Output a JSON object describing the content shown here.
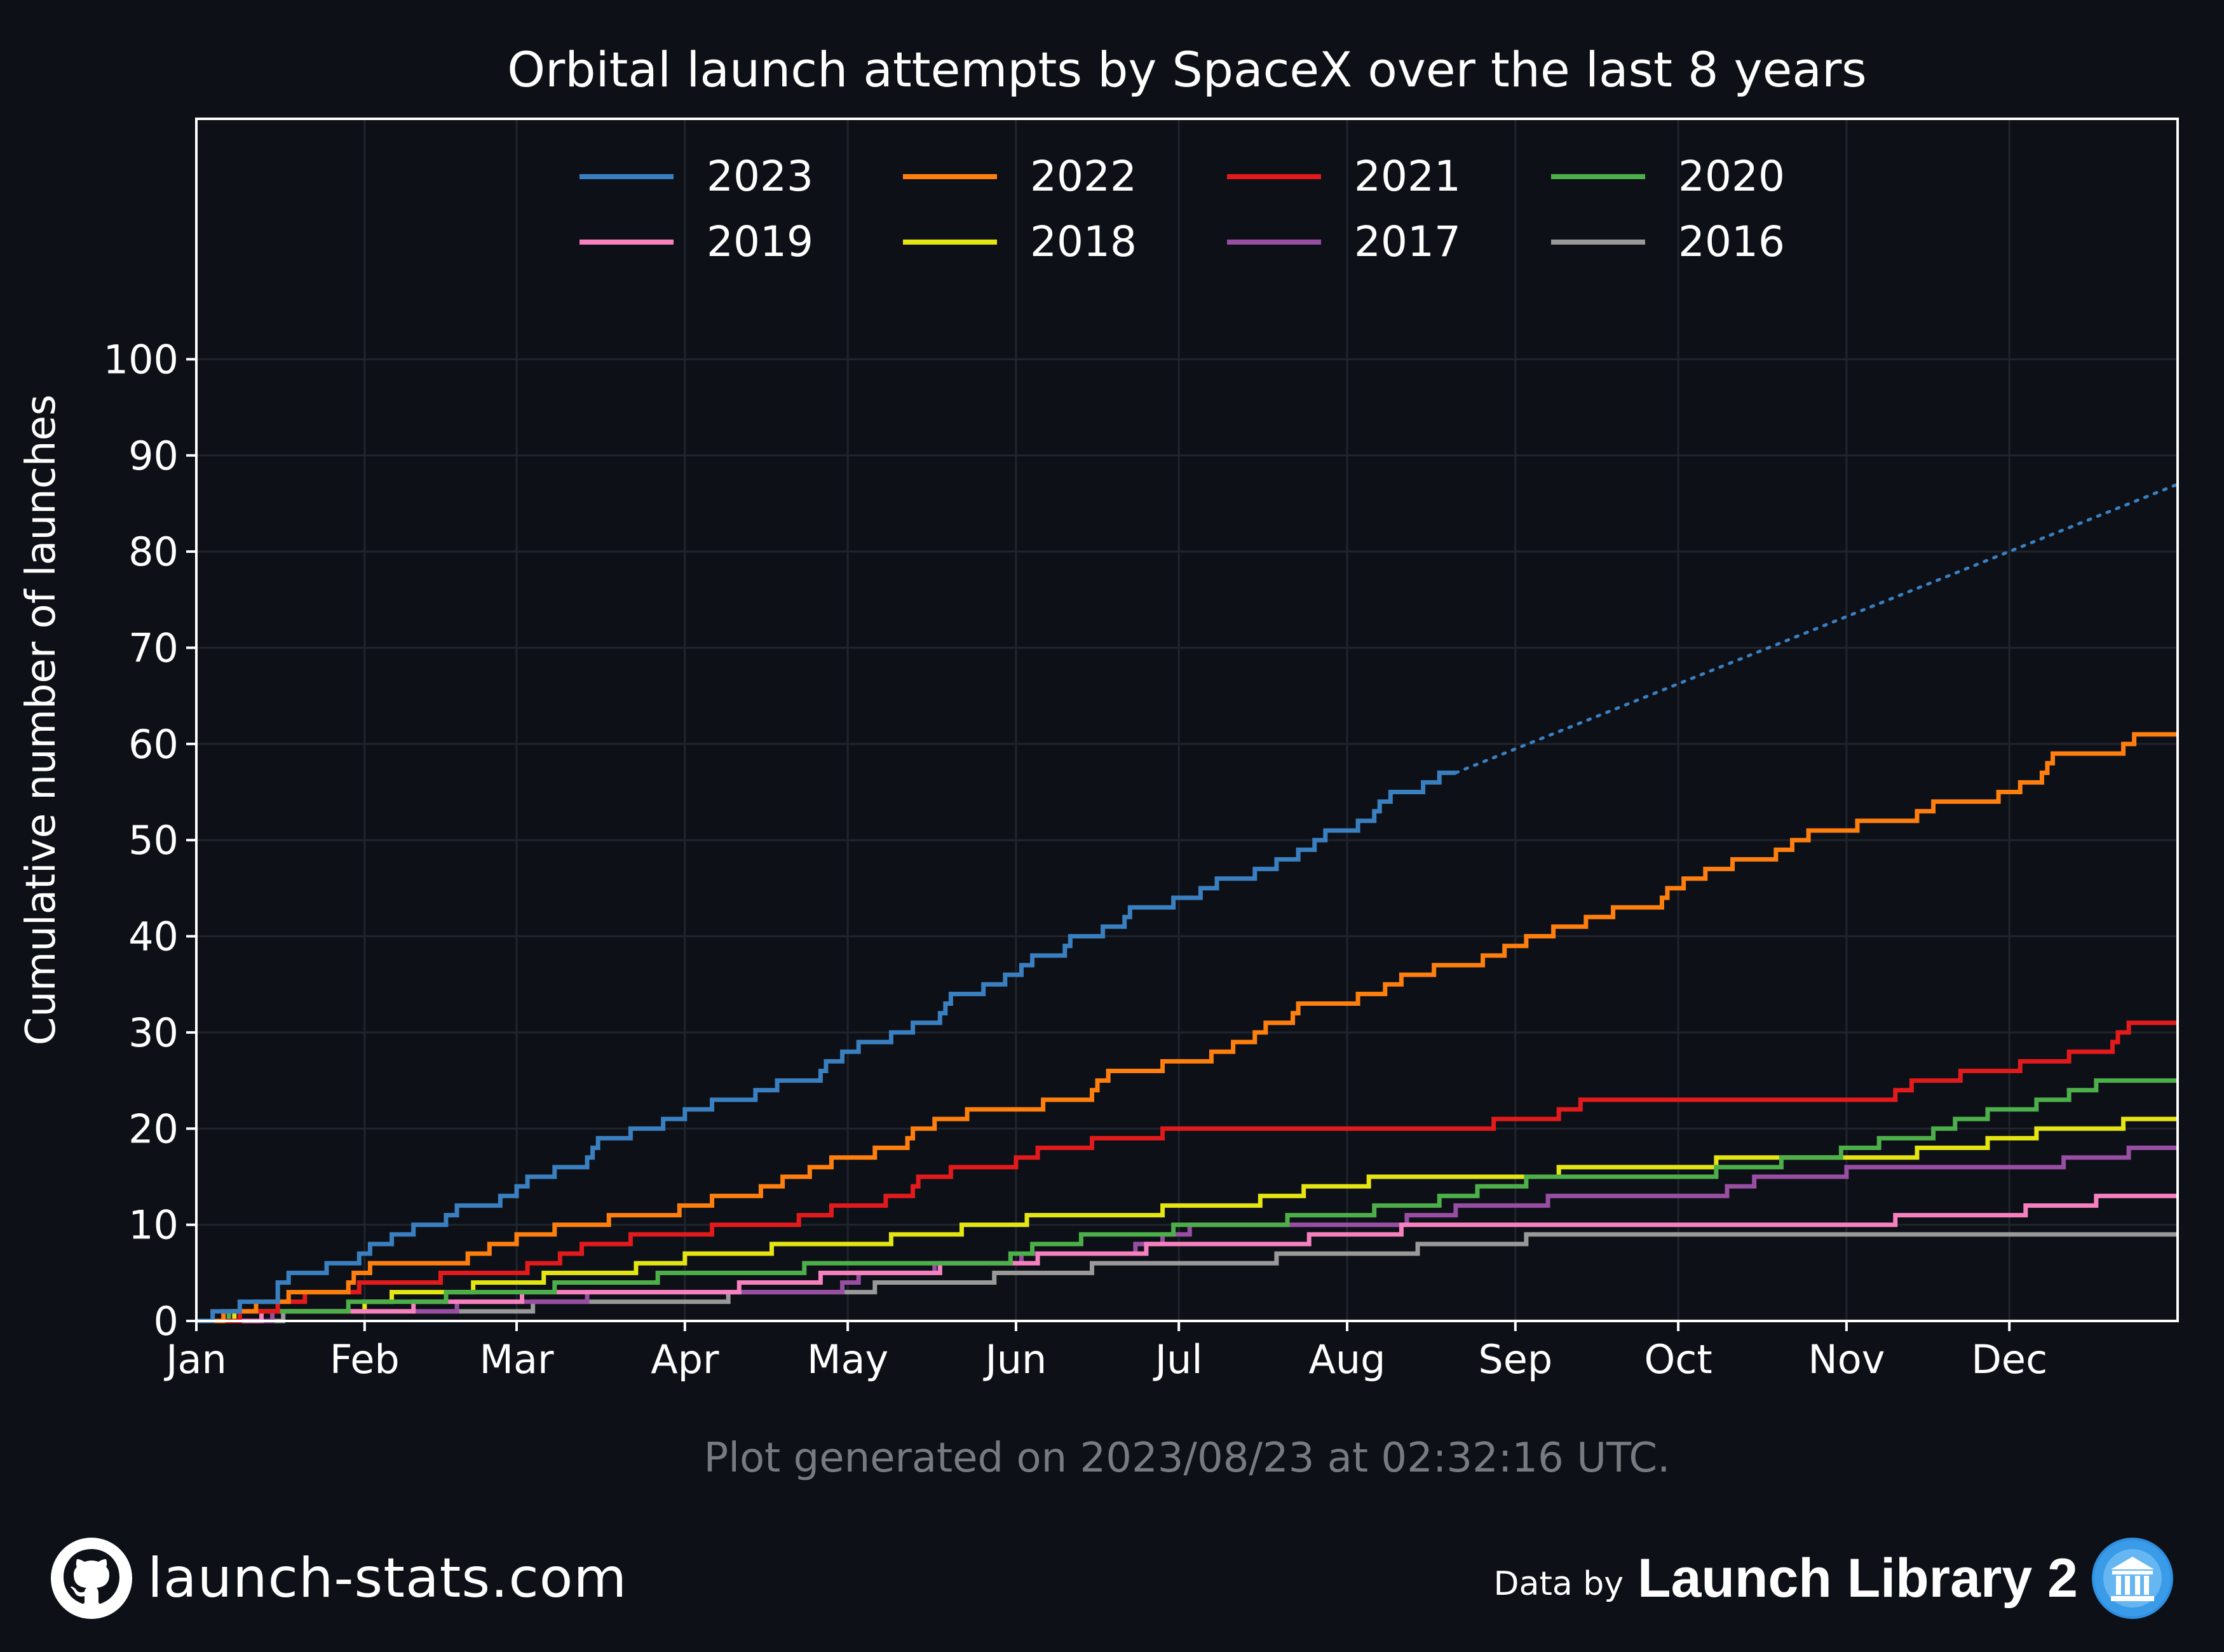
{
  "chart_data": {
    "type": "line",
    "title": "Orbital launch attempts by SpaceX over the last 8 years",
    "xlabel": "",
    "ylabel": "Cumulative number of launches",
    "xlim": [
      0,
      365
    ],
    "ylim": [
      0,
      125
    ],
    "y_ticks": [
      0,
      10,
      20,
      30,
      40,
      50,
      60,
      70,
      80,
      90,
      100
    ],
    "x_ticks": [
      {
        "label": "Jan",
        "day": 0
      },
      {
        "label": "Feb",
        "day": 31
      },
      {
        "label": "Mar",
        "day": 59
      },
      {
        "label": "Apr",
        "day": 90
      },
      {
        "label": "May",
        "day": 120
      },
      {
        "label": "Jun",
        "day": 151
      },
      {
        "label": "Jul",
        "day": 181
      },
      {
        "label": "Aug",
        "day": 212
      },
      {
        "label": "Sep",
        "day": 243
      },
      {
        "label": "Oct",
        "day": 273
      },
      {
        "label": "Nov",
        "day": 304
      },
      {
        "label": "Dec",
        "day": 334
      }
    ],
    "grid": true,
    "legend_position": "top-center",
    "series": [
      {
        "name": "2023",
        "color": "#3a7fc0",
        "points": [
          [
            0,
            0
          ],
          [
            3,
            1
          ],
          [
            8,
            2
          ],
          [
            15,
            4
          ],
          [
            17,
            5
          ],
          [
            24,
            6
          ],
          [
            30,
            7
          ],
          [
            32,
            8
          ],
          [
            36,
            9
          ],
          [
            40,
            10
          ],
          [
            46,
            11
          ],
          [
            48,
            12
          ],
          [
            56,
            13
          ],
          [
            59,
            14
          ],
          [
            61,
            15
          ],
          [
            66,
            16
          ],
          [
            72,
            17
          ],
          [
            73,
            18
          ],
          [
            74,
            19
          ],
          [
            80,
            20
          ],
          [
            86,
            21
          ],
          [
            90,
            22
          ],
          [
            95,
            23
          ],
          [
            103,
            24
          ],
          [
            107,
            25
          ],
          [
            115,
            26
          ],
          [
            116,
            27
          ],
          [
            119,
            28
          ],
          [
            122,
            29
          ],
          [
            128,
            30
          ],
          [
            132,
            31
          ],
          [
            137,
            32
          ],
          [
            138,
            33
          ],
          [
            139,
            34
          ],
          [
            145,
            35
          ],
          [
            149,
            36
          ],
          [
            152,
            37
          ],
          [
            154,
            38
          ],
          [
            160,
            39
          ],
          [
            161,
            40
          ],
          [
            167,
            41
          ],
          [
            171,
            42
          ],
          [
            172,
            43
          ],
          [
            180,
            44
          ],
          [
            185,
            45
          ],
          [
            188,
            46
          ],
          [
            195,
            47
          ],
          [
            199,
            48
          ],
          [
            203,
            49
          ],
          [
            206,
            50
          ],
          [
            208,
            51
          ],
          [
            214,
            52
          ],
          [
            217,
            53
          ],
          [
            218,
            54
          ],
          [
            220,
            55
          ],
          [
            226,
            56
          ],
          [
            229,
            57
          ],
          [
            232,
            57
          ]
        ],
        "projection": [
          [
            232,
            57
          ],
          [
            365,
            87
          ]
        ]
      },
      {
        "name": "2022",
        "color": "#ff7f0e",
        "points": [
          [
            0,
            0
          ],
          [
            5,
            1
          ],
          [
            11,
            2
          ],
          [
            17,
            3
          ],
          [
            28,
            4
          ],
          [
            29,
            5
          ],
          [
            32,
            6
          ],
          [
            50,
            7
          ],
          [
            54,
            8
          ],
          [
            59,
            9
          ],
          [
            66,
            10
          ],
          [
            76,
            11
          ],
          [
            89,
            12
          ],
          [
            95,
            13
          ],
          [
            104,
            14
          ],
          [
            108,
            15
          ],
          [
            113,
            16
          ],
          [
            117,
            17
          ],
          [
            125,
            18
          ],
          [
            131,
            19
          ],
          [
            132,
            20
          ],
          [
            136,
            21
          ],
          [
            142,
            22
          ],
          [
            156,
            23
          ],
          [
            165,
            24
          ],
          [
            166,
            25
          ],
          [
            168,
            26
          ],
          [
            178,
            27
          ],
          [
            187,
            28
          ],
          [
            191,
            29
          ],
          [
            195,
            30
          ],
          [
            197,
            31
          ],
          [
            202,
            32
          ],
          [
            203,
            33
          ],
          [
            214,
            34
          ],
          [
            219,
            35
          ],
          [
            222,
            36
          ],
          [
            228,
            37
          ],
          [
            237,
            38
          ],
          [
            241,
            39
          ],
          [
            245,
            40
          ],
          [
            250,
            41
          ],
          [
            256,
            42
          ],
          [
            261,
            43
          ],
          [
            270,
            44
          ],
          [
            271,
            45
          ],
          [
            274,
            46
          ],
          [
            278,
            47
          ],
          [
            283,
            48
          ],
          [
            291,
            49
          ],
          [
            294,
            50
          ],
          [
            297,
            51
          ],
          [
            306,
            52
          ],
          [
            317,
            53
          ],
          [
            320,
            54
          ],
          [
            332,
            55
          ],
          [
            336,
            56
          ],
          [
            340,
            57
          ],
          [
            341,
            58
          ],
          [
            342,
            59
          ],
          [
            355,
            60
          ],
          [
            357,
            61
          ],
          [
            365,
            61
          ]
        ]
      },
      {
        "name": "2021",
        "color": "#e31a1c",
        "points": [
          [
            0,
            0
          ],
          [
            8,
            1
          ],
          [
            15,
            2
          ],
          [
            20,
            3
          ],
          [
            30,
            4
          ],
          [
            45,
            5
          ],
          [
            61,
            6
          ],
          [
            67,
            7
          ],
          [
            71,
            8
          ],
          [
            80,
            9
          ],
          [
            95,
            10
          ],
          [
            111,
            11
          ],
          [
            117,
            12
          ],
          [
            127,
            13
          ],
          [
            132,
            14
          ],
          [
            133,
            15
          ],
          [
            139,
            16
          ],
          [
            151,
            17
          ],
          [
            155,
            18
          ],
          [
            165,
            19
          ],
          [
            178,
            20
          ],
          [
            239,
            21
          ],
          [
            251,
            22
          ],
          [
            255,
            23
          ],
          [
            313,
            24
          ],
          [
            316,
            25
          ],
          [
            325,
            26
          ],
          [
            336,
            27
          ],
          [
            345,
            28
          ],
          [
            353,
            29
          ],
          [
            354,
            30
          ],
          [
            356,
            31
          ],
          [
            365,
            31
          ]
        ]
      },
      {
        "name": "2020",
        "color": "#4daf4a",
        "points": [
          [
            0,
            0
          ],
          [
            6,
            1
          ],
          [
            28,
            2
          ],
          [
            46,
            3
          ],
          [
            66,
            4
          ],
          [
            85,
            5
          ],
          [
            112,
            6
          ],
          [
            150,
            7
          ],
          [
            154,
            8
          ],
          [
            163,
            9
          ],
          [
            180,
            10
          ],
          [
            201,
            11
          ],
          [
            217,
            12
          ],
          [
            229,
            13
          ],
          [
            236,
            14
          ],
          [
            245,
            15
          ],
          [
            280,
            16
          ],
          [
            292,
            17
          ],
          [
            303,
            18
          ],
          [
            310,
            19
          ],
          [
            320,
            20
          ],
          [
            324,
            21
          ],
          [
            330,
            22
          ],
          [
            339,
            23
          ],
          [
            345,
            24
          ],
          [
            350,
            25
          ],
          [
            365,
            25
          ]
        ]
      },
      {
        "name": "2019",
        "color": "#f781bf",
        "points": [
          [
            0,
            0
          ],
          [
            12,
            1
          ],
          [
            40,
            2
          ],
          [
            60,
            3
          ],
          [
            100,
            4
          ],
          [
            115,
            5
          ],
          [
            137,
            6
          ],
          [
            155,
            7
          ],
          [
            175,
            8
          ],
          [
            205,
            9
          ],
          [
            222,
            10
          ],
          [
            313,
            11
          ],
          [
            337,
            12
          ],
          [
            350,
            13
          ],
          [
            365,
            13
          ]
        ]
      },
      {
        "name": "2018",
        "color": "#e5e512",
        "points": [
          [
            0,
            0
          ],
          [
            7,
            1
          ],
          [
            31,
            2
          ],
          [
            36,
            3
          ],
          [
            51,
            4
          ],
          [
            64,
            5
          ],
          [
            81,
            6
          ],
          [
            90,
            7
          ],
          [
            106,
            8
          ],
          [
            128,
            9
          ],
          [
            141,
            10
          ],
          [
            153,
            11
          ],
          [
            178,
            12
          ],
          [
            196,
            13
          ],
          [
            204,
            14
          ],
          [
            216,
            15
          ],
          [
            251,
            16
          ],
          [
            280,
            17
          ],
          [
            317,
            18
          ],
          [
            330,
            19
          ],
          [
            339,
            20
          ],
          [
            355,
            21
          ],
          [
            365,
            21
          ]
        ]
      },
      {
        "name": "2017",
        "color": "#984ea3",
        "points": [
          [
            0,
            0
          ],
          [
            14,
            1
          ],
          [
            48,
            2
          ],
          [
            72,
            3
          ],
          [
            119,
            4
          ],
          [
            122,
            5
          ],
          [
            136,
            6
          ],
          [
            152,
            7
          ],
          [
            173,
            8
          ],
          [
            178,
            9
          ],
          [
            183,
            10
          ],
          [
            223,
            11
          ],
          [
            232,
            12
          ],
          [
            249,
            13
          ],
          [
            282,
            14
          ],
          [
            287,
            15
          ],
          [
            304,
            16
          ],
          [
            344,
            17
          ],
          [
            356,
            18
          ],
          [
            365,
            18
          ]
        ]
      },
      {
        "name": "2016",
        "color": "#999999",
        "points": [
          [
            0,
            0
          ],
          [
            16,
            1
          ],
          [
            62,
            2
          ],
          [
            98,
            3
          ],
          [
            125,
            4
          ],
          [
            147,
            5
          ],
          [
            165,
            6
          ],
          [
            199,
            7
          ],
          [
            225,
            8
          ],
          [
            245,
            9
          ],
          [
            365,
            9
          ]
        ]
      }
    ]
  },
  "footer": {
    "note": "Plot generated on 2023/08/23 at 02:32:16 UTC.",
    "site": "launch-stats.com",
    "data_by": "Data by",
    "source": "Launch Library 2",
    "github_icon": "github-icon",
    "ll2_icon": "launch-library-icon"
  }
}
